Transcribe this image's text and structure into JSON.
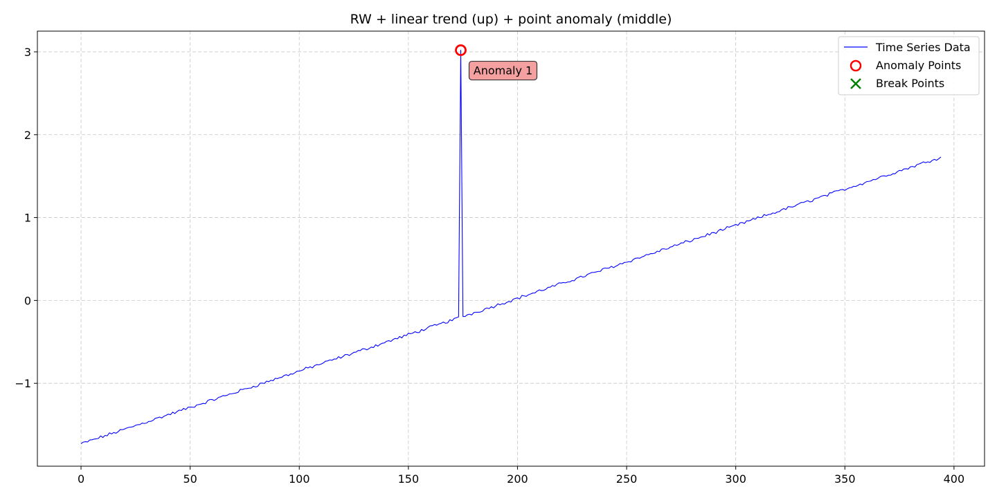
{
  "chart_data": {
    "type": "line",
    "title": "RW + linear trend (up) + point anomaly (middle)",
    "xlabel": "",
    "ylabel": "",
    "xlim": [
      -20,
      414
    ],
    "ylim": [
      -2.0,
      3.25
    ],
    "x_ticks": [
      0,
      50,
      100,
      150,
      200,
      250,
      300,
      350,
      400
    ],
    "y_ticks": [
      -1,
      0,
      1,
      2,
      3
    ],
    "y_tick_labels": [
      "−1",
      "0",
      "1",
      "2",
      "3"
    ],
    "grid": true,
    "legend_position": "top-right",
    "series": [
      {
        "name": "Time Series Data",
        "color": "#0000ff",
        "trend": {
          "start_x": 0,
          "start_y": -1.73,
          "end_x": 394,
          "end_y": 1.73
        },
        "noise_amplitude": 0.015,
        "sample_points": [
          [
            0,
            -1.72
          ],
          [
            50,
            -1.28
          ],
          [
            100,
            -0.85
          ],
          [
            150,
            -0.41
          ],
          [
            173,
            -0.21
          ],
          [
            174,
            3.02
          ],
          [
            175,
            -0.17
          ],
          [
            200,
            0.03
          ],
          [
            250,
            0.46
          ],
          [
            300,
            0.88
          ],
          [
            350,
            1.31
          ],
          [
            394,
            1.73
          ]
        ]
      }
    ],
    "anomalies": [
      {
        "name": "Anomaly Points",
        "x": 174,
        "y": 3.02,
        "label": "Anomaly 1",
        "color": "#ff0000"
      }
    ],
    "breaks": {
      "name": "Break Points",
      "color": "#008000",
      "points": []
    },
    "annotation_color": "#f4a0a0"
  }
}
